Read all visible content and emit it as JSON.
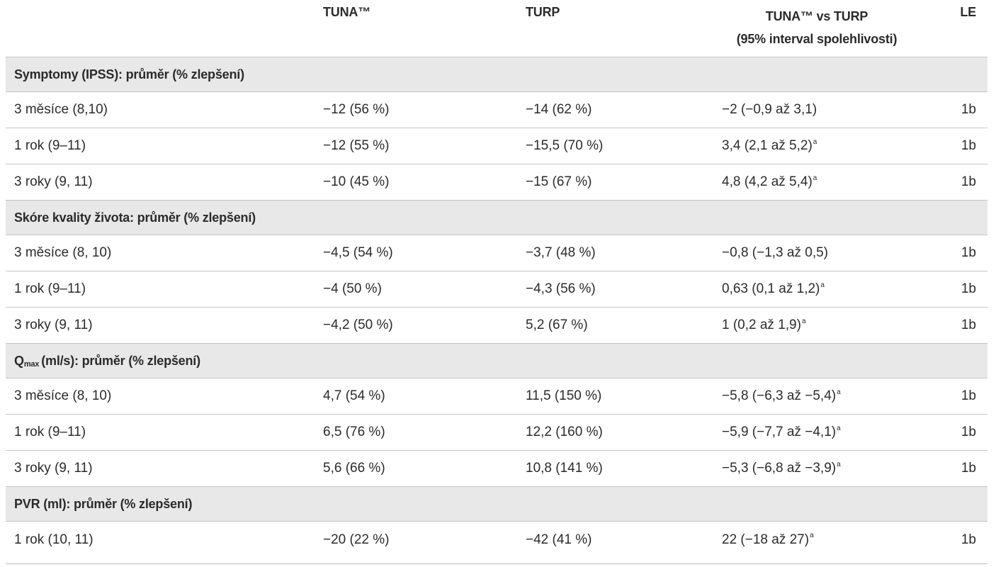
{
  "header": {
    "tuna": "TUNA™",
    "turp": "TURP",
    "diff_line1": "TUNA™ vs TURP",
    "diff_line2": "(95% interval spolehlivosti)",
    "le": "LE"
  },
  "sections": [
    {
      "title": "Symptomy (IPSS): průměr (% zlepšení)",
      "rows": [
        {
          "label": "3 měsíce (8,10)",
          "tuna": "−12 (56 %)",
          "turp": "−14 (62 %)",
          "diff": "−2 (−0,9 až 3,1)",
          "sup": "",
          "le": "1b"
        },
        {
          "label": "1 rok (9–11)",
          "tuna": "−12 (55 %)",
          "turp": "−15,5 (70 %)",
          "diff": "3,4 (2,1 až 5,2)",
          "sup": "a",
          "le": "1b"
        },
        {
          "label": "3 roky (9, 11)",
          "tuna": "−10 (45 %)",
          "turp": "−15 (67 %)",
          "diff": "4,8 (4,2 až 5,4)",
          "sup": "a",
          "le": "1b"
        }
      ]
    },
    {
      "title": "Skóre kvality života: průměr (% zlepšení)",
      "rows": [
        {
          "label": "3 měsíce (8, 10)",
          "tuna": "−4,5 (54 %)",
          "turp": "−3,7 (48 %)",
          "diff": "−0,8 (−1,3 až 0,5)",
          "sup": "",
          "le": "1b"
        },
        {
          "label": "1 rok (9–11)",
          "tuna": "−4 (50 %)",
          "turp": "−4,3 (56 %)",
          "diff": "0,63 (0,1 až 1,2)",
          "sup": "a",
          "le": "1b"
        },
        {
          "label": "3 roky (9, 11)",
          "tuna": "−4,2 (50 %)",
          "turp": "5,2 (67 %)",
          "diff": "1 (0,2 až 1,9)",
          "sup": "a",
          "le": "1b"
        }
      ]
    },
    {
      "title_main": "Q",
      "title_sub": "max",
      "title_rest": "(ml/s): průměr (% zlepšení)",
      "rows": [
        {
          "label": "3 měsíce (8, 10)",
          "tuna": "4,7 (54 %)",
          "turp": "11,5 (150 %)",
          "diff": "−5,8 (−6,3 až −5,4)",
          "sup": "a",
          "le": "1b"
        },
        {
          "label": "1 rok (9–11)",
          "tuna": "6,5 (76 %)",
          "turp": "12,2 (160 %)",
          "diff": "−5,9 (−7,7 až −4,1)",
          "sup": "a",
          "le": "1b"
        },
        {
          "label": "3 roky (9, 11)",
          "tuna": "5,6 (66 %)",
          "turp": "10,8 (141 %)",
          "diff": "−5,3 (−6,8 až −3,9)",
          "sup": "a",
          "le": "1b"
        }
      ]
    },
    {
      "title": "PVR (ml): průměr (% zlepšení)",
      "rows": [
        {
          "label": "1 rok (10, 11)",
          "tuna": "−20 (22 %)",
          "turp": "−42 (41 %)",
          "diff": "22 (−18 až 27)",
          "sup": "a",
          "le": "1b"
        }
      ]
    }
  ]
}
